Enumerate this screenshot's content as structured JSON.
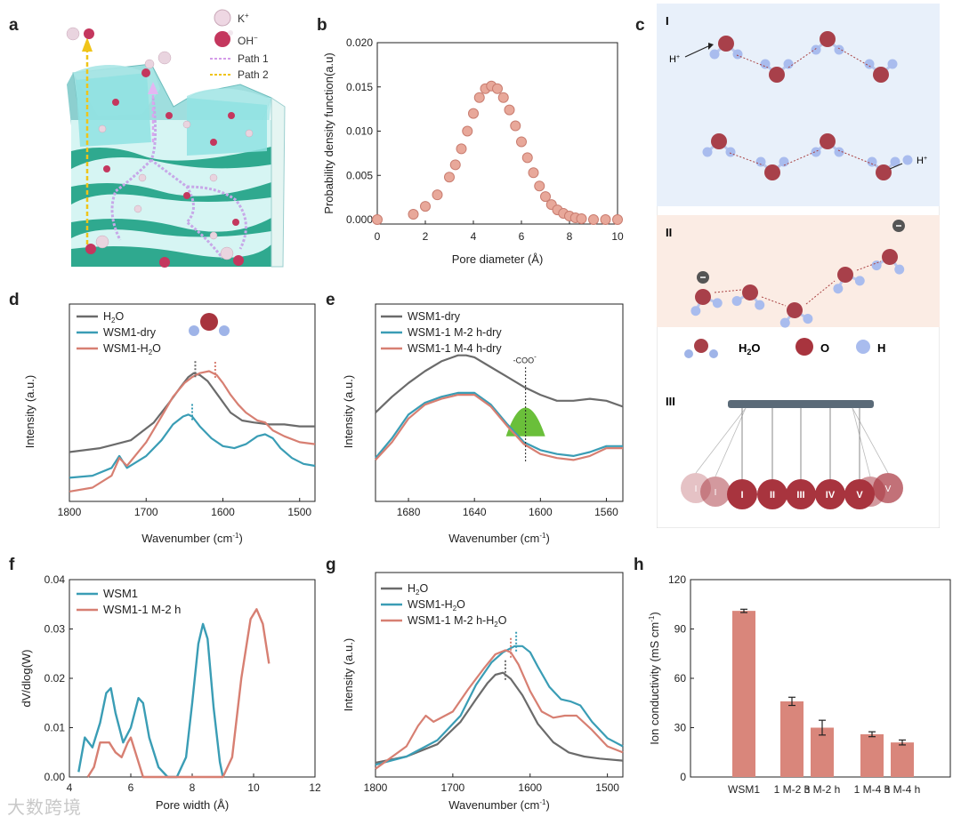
{
  "panel_labels": {
    "a": "a",
    "b": "b",
    "c": "c",
    "d": "d",
    "e": "e",
    "f": "f",
    "g": "g",
    "h": "h"
  },
  "colors": {
    "gray": "#6b6b6b",
    "teal": "#3a9db5",
    "salmon": "#d77f72",
    "bar": "#d9867b",
    "green": "#6abf3a",
    "blue_bg": "#e8f0fa",
    "peach_bg": "#fbece4"
  },
  "panel_a": {
    "legend": [
      {
        "label": "K",
        "sup": "+",
        "icon": "k-ion-icon"
      },
      {
        "label": "OH",
        "sup": "−",
        "icon": "oh-ion-icon"
      },
      {
        "label": "Path 1",
        "icon": "path1-line-icon"
      },
      {
        "label": "Path 2",
        "icon": "path2-line-icon"
      }
    ]
  },
  "panel_c": {
    "section_I": "I",
    "section_II": "II",
    "section_III": "III",
    "h_plus_left": "H",
    "h_plus_right": "H",
    "plus": "+",
    "legend_h2o": "H",
    "legend_h2o_sub": "2",
    "legend_h2o_end": "O",
    "legend_o": "O",
    "legend_h": "H",
    "balls": [
      "I",
      "II",
      "III",
      "IV",
      "V"
    ],
    "ghost_balls": [
      "I",
      "I",
      "V",
      "V"
    ]
  },
  "chart_data": [
    {
      "id": "b",
      "type": "scatter",
      "title": "",
      "xlabel": "Pore diameter  (Å)",
      "ylabel": "Probability density function(a.u)",
      "xlim": [
        0,
        10
      ],
      "ylim": [
        -0.0005,
        0.02
      ],
      "xticks": [
        "0",
        "2",
        "4",
        "6",
        "8",
        "10"
      ],
      "yticks": [
        "0.000",
        "0.005",
        "0.010",
        "0.015",
        "0.020"
      ],
      "series": [
        {
          "name": "PDF",
          "x": [
            0,
            1.5,
            2.0,
            2.5,
            3.0,
            3.25,
            3.5,
            3.75,
            4.0,
            4.25,
            4.5,
            4.75,
            5.0,
            5.25,
            5.5,
            5.75,
            6.0,
            6.25,
            6.5,
            6.75,
            7.0,
            7.25,
            7.5,
            7.75,
            8.0,
            8.25,
            8.5,
            9.0,
            9.5,
            10.0
          ],
          "y": [
            0.0,
            0.0006,
            0.0015,
            0.0028,
            0.0048,
            0.0062,
            0.008,
            0.01,
            0.012,
            0.0138,
            0.0148,
            0.0151,
            0.0148,
            0.0138,
            0.0124,
            0.0106,
            0.0088,
            0.007,
            0.0053,
            0.0038,
            0.0026,
            0.0017,
            0.0011,
            0.0007,
            0.0004,
            0.0002,
            0.0001,
            0.0,
            0.0,
            0.0
          ]
        }
      ]
    },
    {
      "id": "d",
      "type": "line",
      "xlabel": "Wavenumber (cm",
      "xlabel_sup": "-1",
      "xlabel_end": ")",
      "ylabel": "Intensity (a.u.)",
      "xlim": [
        1800,
        1480
      ],
      "ylim": [
        0,
        1
      ],
      "xticks": [
        "1800",
        "1700",
        "1600",
        "1500"
      ],
      "legend": [
        "H",
        "WSM1-dry",
        "WSM1-H"
      ],
      "legend_sub": [
        "2",
        "",
        "2"
      ],
      "legend_end": [
        "O",
        "",
        "O"
      ],
      "series": [
        {
          "name": "H2O",
          "x": [
            1800,
            1760,
            1720,
            1690,
            1670,
            1655,
            1645,
            1638,
            1630,
            1620,
            1605,
            1590,
            1575,
            1560,
            1540,
            1520,
            1500,
            1480
          ],
          "y": [
            0.25,
            0.27,
            0.31,
            0.4,
            0.5,
            0.58,
            0.63,
            0.65,
            0.64,
            0.61,
            0.53,
            0.45,
            0.41,
            0.4,
            0.39,
            0.39,
            0.38,
            0.38
          ]
        },
        {
          "name": "WSM1-dry",
          "x": [
            1800,
            1770,
            1745,
            1735,
            1725,
            1700,
            1680,
            1665,
            1652,
            1645,
            1640,
            1630,
            1615,
            1600,
            1585,
            1570,
            1555,
            1545,
            1535,
            1525,
            1510,
            1495,
            1480
          ],
          "y": [
            0.12,
            0.13,
            0.17,
            0.23,
            0.17,
            0.23,
            0.31,
            0.39,
            0.43,
            0.44,
            0.43,
            0.38,
            0.32,
            0.28,
            0.27,
            0.29,
            0.33,
            0.34,
            0.32,
            0.27,
            0.22,
            0.19,
            0.18
          ]
        },
        {
          "name": "WSM1-H2O",
          "x": [
            1800,
            1770,
            1745,
            1735,
            1725,
            1700,
            1680,
            1665,
            1650,
            1640,
            1630,
            1618,
            1608,
            1600,
            1590,
            1580,
            1570,
            1555,
            1545,
            1535,
            1520,
            1500,
            1480
          ],
          "y": [
            0.05,
            0.07,
            0.13,
            0.22,
            0.18,
            0.3,
            0.43,
            0.53,
            0.6,
            0.63,
            0.65,
            0.66,
            0.64,
            0.6,
            0.54,
            0.49,
            0.45,
            0.41,
            0.4,
            0.36,
            0.33,
            0.3,
            0.29
          ]
        }
      ],
      "dashed_markers": [
        {
          "x": 1640,
          "series": 1
        },
        {
          "x": 1636,
          "series": 0
        },
        {
          "x": 1610,
          "series": 2
        }
      ]
    },
    {
      "id": "e",
      "type": "line",
      "xlabel": "Wavenumber (cm",
      "xlabel_sup": "-1",
      "xlabel_end": ")",
      "ylabel": "Intensity (a.u.)",
      "xlim": [
        1700,
        1550
      ],
      "ylim": [
        0,
        1
      ],
      "xticks": [
        "1680",
        "1640",
        "1600",
        "1560"
      ],
      "legend": [
        "WSM1-dry",
        "WSM1-1 M-2 h-dry",
        "WSM1-1 M-4 h-dry"
      ],
      "annotation": "-COO",
      "annotation_sup": "-",
      "series": [
        {
          "name": "WSM1-dry",
          "x": [
            1700,
            1690,
            1680,
            1670,
            1660,
            1650,
            1645,
            1640,
            1630,
            1620,
            1610,
            1600,
            1590,
            1580,
            1570,
            1560,
            1550
          ],
          "y": [
            0.45,
            0.53,
            0.6,
            0.66,
            0.71,
            0.74,
            0.74,
            0.73,
            0.68,
            0.63,
            0.58,
            0.54,
            0.51,
            0.51,
            0.52,
            0.51,
            0.48
          ]
        },
        {
          "name": "WSM1-1 M-2 h-dry",
          "x": [
            1700,
            1690,
            1680,
            1670,
            1660,
            1650,
            1640,
            1630,
            1620,
            1610,
            1600,
            1590,
            1580,
            1570,
            1560,
            1550
          ],
          "y": [
            0.22,
            0.32,
            0.44,
            0.5,
            0.53,
            0.55,
            0.55,
            0.49,
            0.39,
            0.3,
            0.26,
            0.24,
            0.23,
            0.25,
            0.28,
            0.28
          ]
        },
        {
          "name": "WSM1-1 M-4 h-dry",
          "x": [
            1700,
            1690,
            1680,
            1670,
            1660,
            1650,
            1640,
            1630,
            1620,
            1610,
            1600,
            1590,
            1580,
            1570,
            1560,
            1550
          ],
          "y": [
            0.21,
            0.3,
            0.42,
            0.49,
            0.52,
            0.54,
            0.54,
            0.48,
            0.38,
            0.29,
            0.24,
            0.22,
            0.21,
            0.23,
            0.27,
            0.27
          ]
        }
      ],
      "marker_x": 1609
    },
    {
      "id": "f",
      "type": "line",
      "xlabel": "Pore width (Å)",
      "ylabel": "dV/dlog(W)",
      "xlim": [
        4,
        12
      ],
      "ylim": [
        0,
        0.04
      ],
      "xticks": [
        "4",
        "6",
        "8",
        "10",
        "12"
      ],
      "yticks": [
        "0.00",
        "0.01",
        "0.02",
        "0.03",
        "0.04"
      ],
      "legend": [
        "WSM1",
        "WSM1-1 M-2 h"
      ],
      "series": [
        {
          "name": "WSM1",
          "x": [
            4.3,
            4.5,
            4.75,
            5.0,
            5.2,
            5.35,
            5.5,
            5.75,
            6.0,
            6.25,
            6.4,
            6.6,
            6.9,
            7.2,
            7.5,
            7.8,
            8.0,
            8.2,
            8.35,
            8.5,
            8.7,
            8.9,
            9.0
          ],
          "y": [
            0.001,
            0.008,
            0.006,
            0.011,
            0.017,
            0.018,
            0.013,
            0.007,
            0.01,
            0.016,
            0.015,
            0.008,
            0.002,
            0.0,
            0.0,
            0.004,
            0.015,
            0.027,
            0.031,
            0.028,
            0.014,
            0.003,
            0.0
          ]
        },
        {
          "name": "WSM1-1 M-2 h",
          "x": [
            4.6,
            4.8,
            5.0,
            5.3,
            5.5,
            5.7,
            5.9,
            6.0,
            6.2,
            6.4,
            6.6,
            7.0,
            8.0,
            9.0,
            9.3,
            9.6,
            9.9,
            10.1,
            10.3,
            10.5
          ],
          "y": [
            0.0,
            0.002,
            0.007,
            0.007,
            0.005,
            0.004,
            0.007,
            0.008,
            0.004,
            0.0,
            0.0,
            0.0,
            0.0,
            0.0,
            0.004,
            0.02,
            0.032,
            0.034,
            0.031,
            0.023
          ]
        }
      ]
    },
    {
      "id": "g",
      "type": "line",
      "xlabel": "Wavenumber (cm",
      "xlabel_sup": "-1",
      "xlabel_end": ")",
      "ylabel": "Intensity (a.u.)",
      "xlim": [
        1800,
        1480
      ],
      "ylim": [
        0,
        1
      ],
      "xticks": [
        "1800",
        "1700",
        "1600",
        "1500"
      ],
      "legend": [
        "H",
        "WSM1-H",
        "WSM1-1 M-2 h-H"
      ],
      "legend_sub": [
        "2",
        "2",
        "2"
      ],
      "legend_end": [
        "O",
        "O",
        "O"
      ],
      "series": [
        {
          "name": "H2O",
          "x": [
            1800,
            1760,
            1720,
            1690,
            1670,
            1655,
            1645,
            1635,
            1625,
            1610,
            1590,
            1570,
            1550,
            1530,
            1510,
            1480
          ],
          "y": [
            0.07,
            0.1,
            0.16,
            0.27,
            0.38,
            0.46,
            0.5,
            0.51,
            0.48,
            0.4,
            0.26,
            0.17,
            0.12,
            0.1,
            0.09,
            0.08
          ]
        },
        {
          "name": "WSM1-H2O",
          "x": [
            1800,
            1760,
            1720,
            1690,
            1670,
            1650,
            1635,
            1620,
            1610,
            1600,
            1590,
            1575,
            1560,
            1548,
            1535,
            1520,
            1500,
            1480
          ],
          "y": [
            0.06,
            0.1,
            0.18,
            0.3,
            0.45,
            0.56,
            0.61,
            0.64,
            0.64,
            0.61,
            0.54,
            0.44,
            0.38,
            0.37,
            0.35,
            0.27,
            0.19,
            0.15
          ]
        },
        {
          "name": "WSM1-1 M-2 h-H2O",
          "x": [
            1800,
            1760,
            1745,
            1735,
            1725,
            1700,
            1680,
            1660,
            1645,
            1632,
            1625,
            1615,
            1600,
            1585,
            1570,
            1555,
            1540,
            1520,
            1500,
            1480
          ],
          "y": [
            0.04,
            0.15,
            0.25,
            0.3,
            0.27,
            0.32,
            0.43,
            0.53,
            0.6,
            0.62,
            0.61,
            0.55,
            0.42,
            0.32,
            0.29,
            0.3,
            0.3,
            0.23,
            0.15,
            0.12
          ]
        }
      ],
      "dashed_markers": [
        {
          "x": 1632,
          "series": 0
        },
        {
          "x": 1625,
          "series": 2
        },
        {
          "x": 1618,
          "series": 1
        }
      ]
    },
    {
      "id": "h",
      "type": "bar",
      "xlabel": "",
      "ylabel": "Ion conductivity (mS cm",
      "ylabel_sup": "-1",
      "ylabel_end": ")",
      "ylim": [
        0,
        120
      ],
      "yticks": [
        "0",
        "30",
        "60",
        "90",
        "120"
      ],
      "categories": [
        "WSM1",
        "1 M-2 h",
        "3 M-2 h",
        "1 M-4 h",
        "3 M-4 h"
      ],
      "values": [
        101,
        46,
        30,
        26,
        21
      ],
      "errors": [
        1,
        2.5,
        4.5,
        1.5,
        1.5
      ]
    }
  ],
  "watermark": "大数跨境"
}
